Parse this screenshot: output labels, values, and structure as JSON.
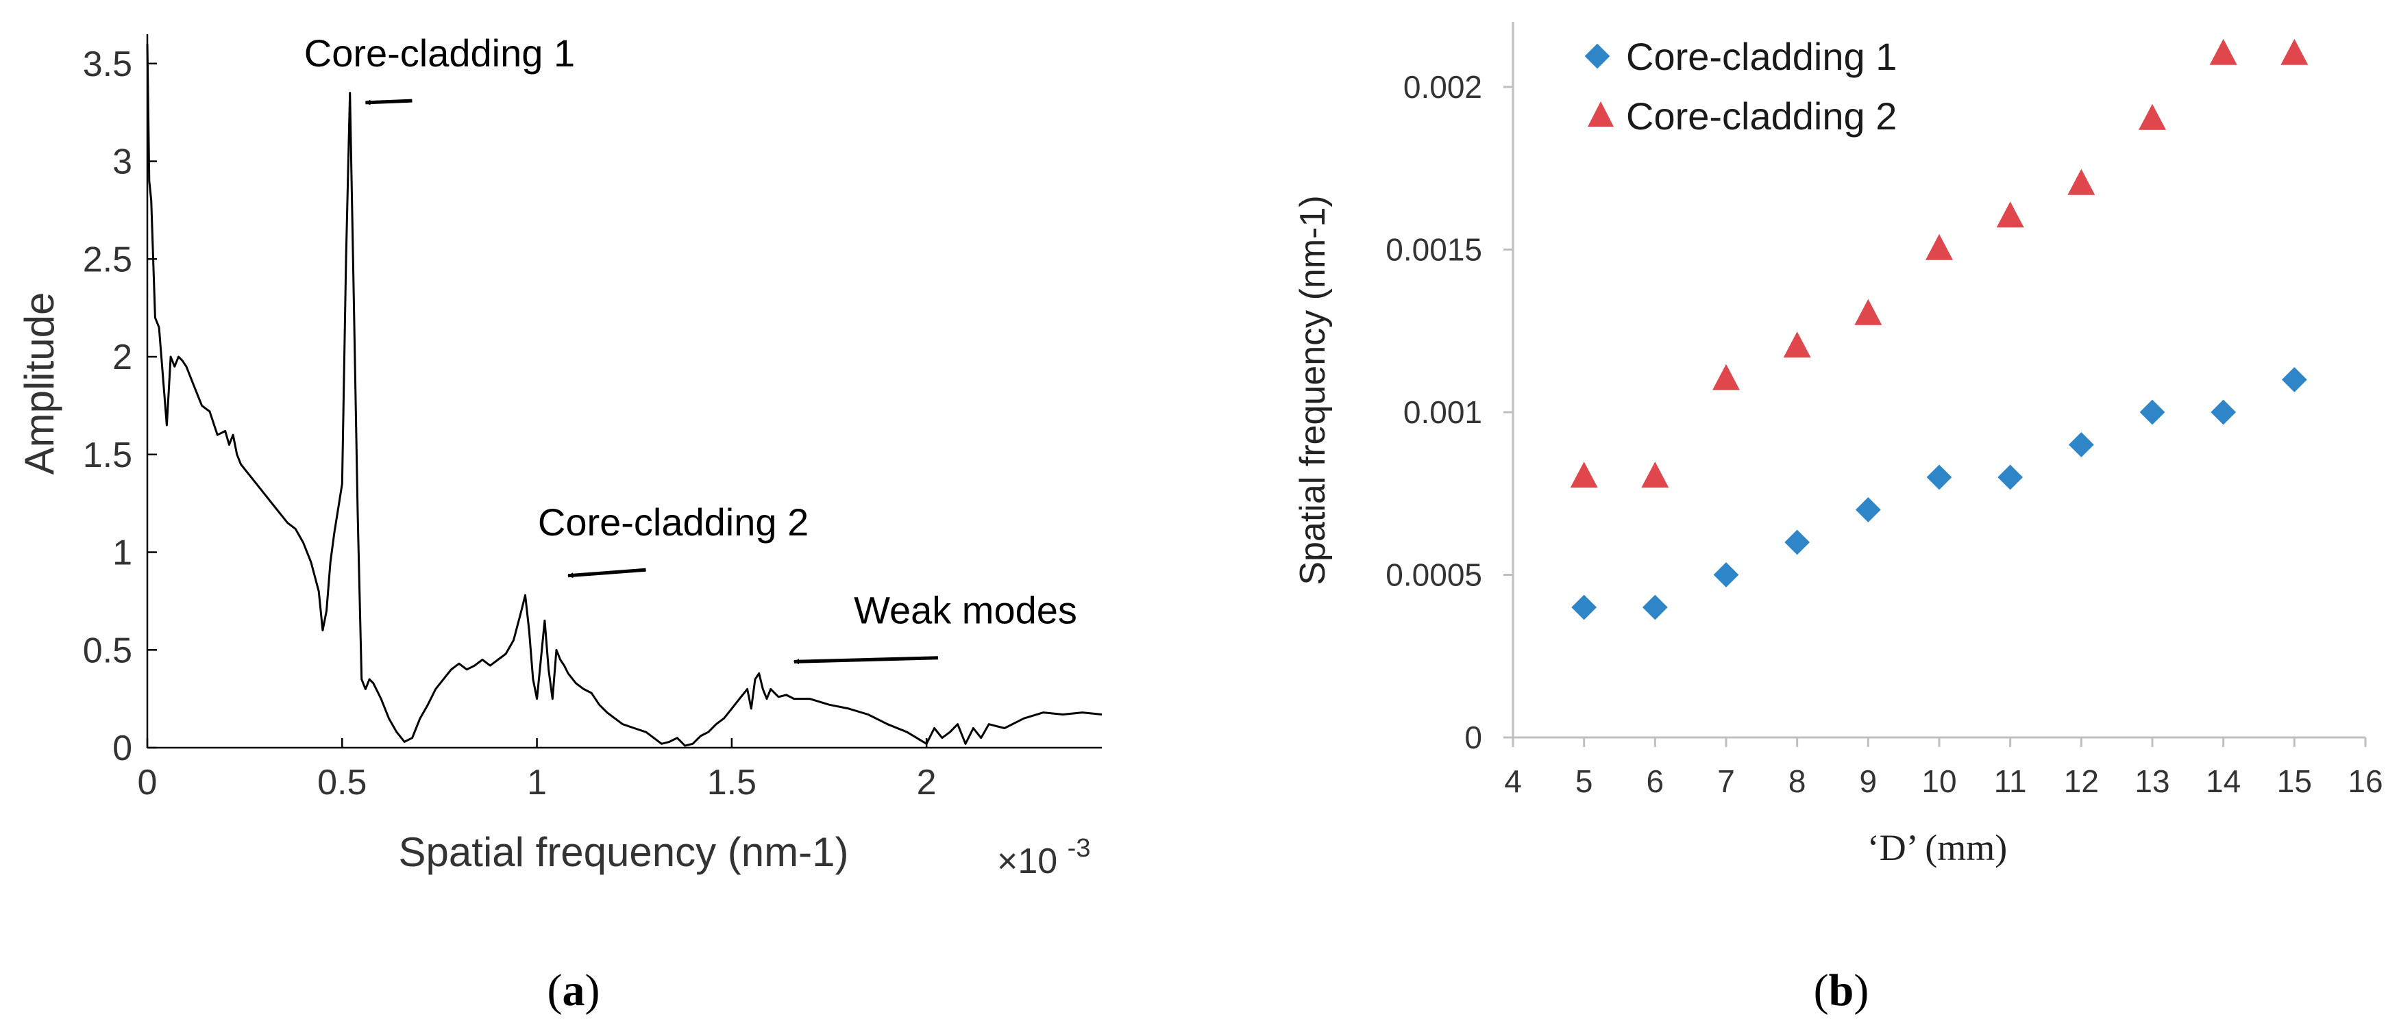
{
  "chart_data": [
    {
      "type": "line",
      "panel_label_open": "(",
      "panel_label": "a",
      "panel_label_close": ")",
      "xlabel": "Spatial frequency (nm-1)",
      "x_multiplier_prefix": "×10",
      "x_multiplier_exp": "-3",
      "ylabel": "Amplitude",
      "xlim": [
        0,
        2.45
      ],
      "ylim": [
        0,
        3.65
      ],
      "xticks": [
        0,
        0.5,
        1,
        1.5,
        2
      ],
      "xtick_labels": [
        "0",
        "0.5",
        "1",
        "1.5",
        "2"
      ],
      "yticks": [
        0,
        0.5,
        1,
        1.5,
        2,
        2.5,
        3,
        3.5
      ],
      "ytick_labels": [
        "0",
        "0.5",
        "1",
        "1.5",
        "2",
        "2.5",
        "3",
        "3.5"
      ],
      "line_color": "#000000",
      "series": [
        {
          "name": "spectrum",
          "x": [
            0,
            0.005,
            0.01,
            0.02,
            0.03,
            0.05,
            0.06,
            0.07,
            0.08,
            0.09,
            0.1,
            0.12,
            0.14,
            0.16,
            0.18,
            0.2,
            0.21,
            0.22,
            0.23,
            0.24,
            0.26,
            0.28,
            0.3,
            0.32,
            0.34,
            0.36,
            0.38,
            0.4,
            0.42,
            0.44,
            0.45,
            0.46,
            0.47,
            0.48,
            0.5,
            0.51,
            0.52,
            0.53,
            0.54,
            0.55,
            0.56,
            0.57,
            0.58,
            0.6,
            0.62,
            0.64,
            0.66,
            0.68,
            0.7,
            0.72,
            0.74,
            0.76,
            0.78,
            0.8,
            0.82,
            0.84,
            0.86,
            0.88,
            0.9,
            0.92,
            0.94,
            0.96,
            0.97,
            0.98,
            0.99,
            1.0,
            1.01,
            1.02,
            1.03,
            1.04,
            1.05,
            1.06,
            1.07,
            1.08,
            1.1,
            1.12,
            1.14,
            1.16,
            1.18,
            1.2,
            1.22,
            1.25,
            1.28,
            1.3,
            1.32,
            1.34,
            1.36,
            1.38,
            1.4,
            1.42,
            1.44,
            1.46,
            1.48,
            1.5,
            1.52,
            1.54,
            1.55,
            1.56,
            1.57,
            1.58,
            1.59,
            1.6,
            1.61,
            1.62,
            1.64,
            1.66,
            1.7,
            1.75,
            1.8,
            1.85,
            1.9,
            1.95,
            2.0,
            2.02,
            2.04,
            2.06,
            2.08,
            2.1,
            2.12,
            2.14,
            2.16,
            2.2,
            2.25,
            2.3,
            2.35,
            2.4,
            2.45
          ],
          "y": [
            3.6,
            2.9,
            2.8,
            2.2,
            2.15,
            1.65,
            2.0,
            1.95,
            2.0,
            1.98,
            1.95,
            1.85,
            1.75,
            1.72,
            1.6,
            1.62,
            1.55,
            1.6,
            1.5,
            1.45,
            1.4,
            1.35,
            1.3,
            1.25,
            1.2,
            1.15,
            1.12,
            1.05,
            0.95,
            0.8,
            0.6,
            0.7,
            0.95,
            1.1,
            1.35,
            2.5,
            3.35,
            2.3,
            1.2,
            0.35,
            0.3,
            0.35,
            0.33,
            0.25,
            0.15,
            0.08,
            0.03,
            0.05,
            0.15,
            0.22,
            0.3,
            0.35,
            0.4,
            0.43,
            0.4,
            0.42,
            0.45,
            0.42,
            0.45,
            0.48,
            0.55,
            0.7,
            0.78,
            0.6,
            0.35,
            0.25,
            0.45,
            0.65,
            0.4,
            0.25,
            0.5,
            0.45,
            0.42,
            0.38,
            0.33,
            0.3,
            0.28,
            0.22,
            0.18,
            0.15,
            0.12,
            0.1,
            0.08,
            0.05,
            0.02,
            0.03,
            0.05,
            0.01,
            0.02,
            0.06,
            0.08,
            0.12,
            0.15,
            0.2,
            0.25,
            0.3,
            0.2,
            0.35,
            0.38,
            0.3,
            0.25,
            0.3,
            0.28,
            0.26,
            0.27,
            0.25,
            0.25,
            0.22,
            0.2,
            0.17,
            0.12,
            0.08,
            0.02,
            0.1,
            0.05,
            0.08,
            0.12,
            0.02,
            0.1,
            0.05,
            0.12,
            0.1,
            0.15,
            0.18,
            0.17,
            0.18,
            0.17
          ]
        }
      ],
      "annotations": [
        {
          "text": "Core-cladding 1",
          "point": [
            0.56,
            3.3
          ],
          "text_pos": [
            0.75,
            3.45
          ]
        },
        {
          "text": "Core-cladding 2",
          "point": [
            1.08,
            0.88
          ],
          "text_pos": [
            1.35,
            1.05
          ]
        },
        {
          "text": "Weak modes",
          "point": [
            1.66,
            0.44
          ],
          "text_pos": [
            2.1,
            0.6
          ]
        }
      ]
    },
    {
      "type": "scatter",
      "panel_label_open": "(",
      "panel_label": "b",
      "panel_label_close": ")",
      "xlabel": "‘D’ (mm)",
      "ylabel": "Spatial frequency (nm-1)",
      "xlim": [
        4,
        16
      ],
      "ylim": [
        0,
        0.0022
      ],
      "xticks": [
        4,
        5,
        6,
        7,
        8,
        9,
        10,
        11,
        12,
        13,
        14,
        15,
        16
      ],
      "xtick_labels": [
        "4",
        "5",
        "6",
        "7",
        "8",
        "9",
        "10",
        "11",
        "12",
        "13",
        "14",
        "15",
        "16"
      ],
      "yticks": [
        0,
        0.0005,
        0.001,
        0.0015,
        0.002
      ],
      "ytick_labels": [
        "0",
        "0.0005",
        "0.001",
        "0.0015",
        "0.002"
      ],
      "grid": false,
      "legend_position": "top-left",
      "series": [
        {
          "name": "Core-cladding 1",
          "marker": "diamond",
          "color": "#2E86C8",
          "x": [
            5,
            6,
            7,
            8,
            9,
            10,
            11,
            12,
            13,
            14,
            15
          ],
          "y": [
            0.0004,
            0.0004,
            0.0005,
            0.0006,
            0.0007,
            0.0008,
            0.0008,
            0.0009,
            0.001,
            0.001,
            0.0011
          ]
        },
        {
          "name": "Core-cladding 2",
          "marker": "triangle",
          "color": "#E0474C",
          "x": [
            5,
            6,
            7,
            8,
            9,
            10,
            11,
            12,
            13,
            14,
            15
          ],
          "y": [
            0.0008,
            0.0008,
            0.0011,
            0.0012,
            0.0013,
            0.0015,
            0.0016,
            0.0017,
            0.0019,
            0.0021,
            0.0021
          ]
        }
      ]
    }
  ]
}
